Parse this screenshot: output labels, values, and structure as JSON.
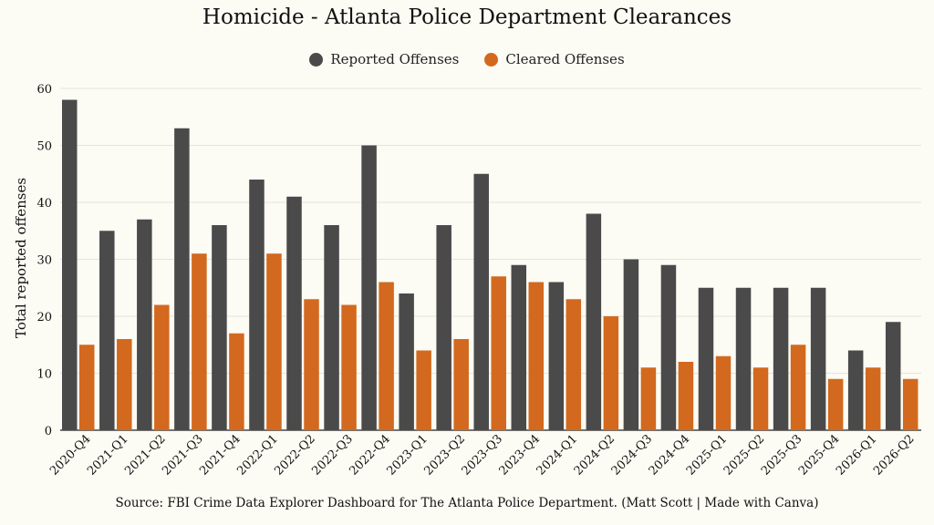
{
  "chart_data": {
    "type": "bar",
    "title": "Homicide - Atlanta Police Department Clearances",
    "ylabel": "Total reported offenses",
    "xlabel": "",
    "source": "Source: FBI Crime Data Explorer Dashboard for The Atlanta Police Department. (Matt Scott | Made with Canva)",
    "ylim": [
      0,
      60
    ],
    "yticks": [
      0,
      10,
      20,
      30,
      40,
      50,
      60
    ],
    "grid": true,
    "legend_position": "top-center",
    "categories": [
      "2020-Q4",
      "2021-Q1",
      "2021-Q2",
      "2021-Q3",
      "2021-Q4",
      "2022-Q1",
      "2022-Q2",
      "2022-Q3",
      "2022-Q4",
      "2023-Q1",
      "2023-Q2",
      "2023-Q3",
      "2023-Q4",
      "2024-Q1",
      "2024-Q2",
      "2024-Q3",
      "2024-Q4",
      "2025-Q1",
      "2025-Q2",
      "2025-Q3",
      "2025-Q4",
      "2026-Q1",
      "2026-Q2"
    ],
    "series": [
      {
        "name": "Reported Offenses",
        "color": "#4a4a4a",
        "values": [
          58,
          35,
          37,
          53,
          36,
          44,
          41,
          36,
          50,
          24,
          36,
          45,
          29,
          26,
          38,
          30,
          29,
          25,
          25,
          25,
          25,
          14,
          19
        ]
      },
      {
        "name": "Cleared Offenses",
        "color": "#d2691e",
        "values": [
          15,
          16,
          22,
          31,
          17,
          31,
          23,
          22,
          26,
          14,
          16,
          27,
          26,
          23,
          20,
          11,
          12,
          13,
          11,
          15,
          9,
          11,
          9
        ]
      }
    ]
  }
}
